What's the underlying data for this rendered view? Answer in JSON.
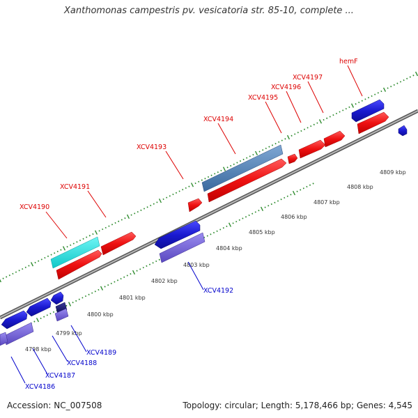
{
  "title": "Xanthomonas campestris pv. vesicatoria str. 85-10, complete ...",
  "footer": {
    "accession": "Accession: NC_007508",
    "stats": "Topology: circular; Length: 5,178,466 bp; Genes: 4,545"
  },
  "colors": {
    "forward_gene": "#ee1111",
    "reverse_gene": "#1a1ad0",
    "forward_label": "#dd0000",
    "reverse_label": "#0000cc",
    "highlight_cyan": "#19e6e6",
    "highlight_steel": "#4a7fb5",
    "pseudo_purple": "#7b6ad6",
    "backbone": "#999999",
    "tick": "#2e8b2e"
  },
  "scale_labels": [
    "4798 kbp",
    "4799 kbp",
    "4800 kbp",
    "4801 kbp",
    "4802 kbp",
    "4803 kbp",
    "4804 kbp",
    "4805 kbp",
    "4806 kbp",
    "4807 kbp",
    "4808 kbp",
    "4809 kbp"
  ],
  "gene_labels_top": [
    "XCV4190",
    "XCV4191",
    "XCV4193",
    "XCV4194",
    "XCV4195",
    "XCV4196",
    "XCV4197",
    "hemF"
  ],
  "gene_labels_bottom": [
    "XCV4186",
    "XCV4187",
    "XCV4188",
    "XCV4189",
    "XCV4192"
  ]
}
